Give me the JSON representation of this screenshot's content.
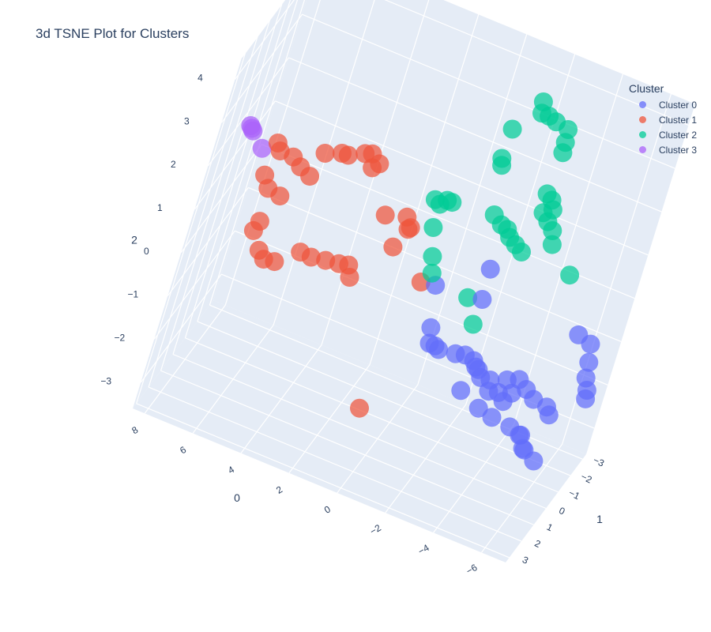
{
  "chart_data": {
    "type": "scatter",
    "title": "3d TSNE Plot for Clusters",
    "legend_title": "Cluster",
    "legend_placement": "top-right",
    "axes": {
      "x": {
        "title": "0",
        "ticks": [
          "8",
          "6",
          "4",
          "2",
          "0",
          "-2",
          "-4",
          "-6"
        ],
        "range": [
          -7,
          8.5
        ]
      },
      "y": {
        "title": "1",
        "ticks": [
          "-3",
          "-2",
          "-1",
          "0",
          "1",
          "2",
          "3"
        ],
        "range": [
          -3.3,
          3.3
        ]
      },
      "z": {
        "title": "2",
        "ticks": [
          "4",
          "3",
          "2",
          "1",
          "0",
          "-1",
          "-2",
          "-3"
        ],
        "range": [
          -3.6,
          4.5
        ]
      }
    },
    "grid": true,
    "series": [
      {
        "name": "Cluster 0",
        "color": "#636efa",
        "points": [
          [
            -1.2,
            -0.1,
            -1.3
          ],
          [
            -1.0,
            -0.2,
            -1.3
          ],
          [
            -1.9,
            0.0,
            -1.2
          ],
          [
            -2.3,
            0.1,
            -1.1
          ],
          [
            -2.8,
            0.0,
            -1.3
          ],
          [
            -3.5,
            0.1,
            -1.4
          ],
          [
            -3.6,
            0.2,
            -1.6
          ],
          [
            -4.1,
            0.0,
            -1.3
          ],
          [
            -4.6,
            0.2,
            -1.1
          ],
          [
            -4.5,
            0.3,
            -1.4
          ],
          [
            -2.7,
            0.2,
            -1.1
          ],
          [
            -3.0,
            0.3,
            -1.2
          ],
          [
            -3.2,
            0.4,
            -1.3
          ],
          [
            -4.0,
            0.3,
            -1.5
          ],
          [
            -4.3,
            0.4,
            -1.6
          ],
          [
            -5.0,
            0.3,
            -1.2
          ],
          [
            -5.4,
            0.4,
            -1.3
          ],
          [
            -6.0,
            0.5,
            -1.3
          ],
          [
            -6.2,
            0.6,
            -1.4
          ],
          [
            -2.7,
            0.7,
            -1.6
          ],
          [
            -3.5,
            0.5,
            -1.9
          ],
          [
            -4.2,
            0.9,
            -1.8
          ],
          [
            -5.0,
            1.0,
            -1.8
          ],
          [
            -5.5,
            1.2,
            -1.8
          ],
          [
            -5.8,
            1.3,
            -2.0
          ],
          [
            -5.6,
            1.4,
            -1.7
          ],
          [
            -6.0,
            1.8,
            -1.8
          ],
          [
            -6.5,
            1.9,
            -1.9
          ],
          [
            -5.9,
            -1.2,
            -0.3
          ],
          [
            -6.5,
            -1.0,
            -0.3
          ],
          [
            -6.7,
            -0.8,
            -0.6
          ],
          [
            -6.8,
            -0.7,
            -0.9
          ],
          [
            -7.0,
            -0.6,
            -1.1
          ],
          [
            -7.1,
            -0.4,
            -1.2
          ],
          [
            -0.3,
            -0.3,
            -0.1
          ],
          [
            -1.9,
            -1.2,
            0.3
          ],
          [
            -2.0,
            -1.0,
            -0.3
          ],
          [
            -0.8,
            0.4,
            -0.7
          ],
          [
            -1.0,
            0.7,
            -0.9
          ]
        ]
      },
      {
        "name": "Cluster 1",
        "color": "#ef553b",
        "points": [
          [
            7.0,
            0.2,
            1.7
          ],
          [
            6.8,
            0.3,
            1.6
          ],
          [
            6.3,
            0.1,
            1.5
          ],
          [
            5.9,
            0.2,
            1.4
          ],
          [
            5.5,
            0.0,
            1.2
          ],
          [
            7.2,
            -0.1,
            0.8
          ],
          [
            6.9,
            0.0,
            0.6
          ],
          [
            6.4,
            -0.1,
            0.5
          ],
          [
            6.8,
            0.1,
            -0.1
          ],
          [
            6.9,
            0.2,
            -0.3
          ],
          [
            6.5,
            0.1,
            -0.7
          ],
          [
            6.2,
            0.2,
            -0.8
          ],
          [
            5.8,
            0.1,
            -0.8
          ],
          [
            4.9,
            0.3,
            -0.3
          ],
          [
            4.5,
            0.1,
            -0.4
          ],
          [
            3.9,
            0.2,
            -0.3
          ],
          [
            3.4,
            0.1,
            -0.3
          ],
          [
            3.0,
            0.2,
            -0.2
          ],
          [
            2.8,
            0.3,
            -0.4
          ],
          [
            5.2,
            0.0,
            1.8
          ],
          [
            4.6,
            -0.1,
            1.9
          ],
          [
            4.3,
            0.1,
            2.0
          ],
          [
            3.8,
            -0.3,
            2.0
          ],
          [
            3.5,
            -0.2,
            2.1
          ],
          [
            3.1,
            -0.1,
            2.0
          ],
          [
            3.3,
            0.0,
            1.9
          ],
          [
            2.3,
            -0.1,
            1.0
          ],
          [
            1.5,
            -0.2,
            1.1
          ],
          [
            1.3,
            -0.1,
            0.9
          ],
          [
            1.2,
            0.0,
            1.0
          ],
          [
            1.6,
            0.1,
            0.5
          ],
          [
            0.3,
            -0.4,
            -0.2
          ],
          [
            0.7,
            1.2,
            -2.6
          ]
        ]
      },
      {
        "name": "Cluster 2",
        "color": "#00cc96",
        "points": [
          [
            -1.6,
            -2.5,
            3.6
          ],
          [
            -1.7,
            -2.4,
            3.4
          ],
          [
            -2.0,
            -2.4,
            3.4
          ],
          [
            -2.3,
            -2.5,
            3.3
          ],
          [
            -2.8,
            -2.6,
            3.2
          ],
          [
            -2.9,
            -2.4,
            3.0
          ],
          [
            -3.0,
            -2.1,
            2.9
          ],
          [
            -0.9,
            -2.0,
            3.0
          ],
          [
            -0.9,
            -1.8,
            2.4
          ],
          [
            -1.0,
            -1.7,
            2.3
          ],
          [
            -3.0,
            -1.7,
            2.1
          ],
          [
            -3.3,
            -1.5,
            2.1
          ],
          [
            -3.5,
            -1.3,
            2.0
          ],
          [
            -3.2,
            -1.2,
            1.9
          ],
          [
            -3.5,
            -1.1,
            1.8
          ],
          [
            -3.8,
            -1.0,
            1.7
          ],
          [
            -4.0,
            -0.8,
            1.5
          ],
          [
            -1.4,
            -1.3,
            1.4
          ],
          [
            -1.8,
            -1.2,
            1.3
          ],
          [
            -2.1,
            -1.1,
            1.3
          ],
          [
            -2.3,
            -1.0,
            1.2
          ],
          [
            -2.6,
            -1.0,
            1.1
          ],
          [
            -2.9,
            -1.0,
            1.0
          ],
          [
            -5.1,
            -0.4,
            1.2
          ],
          [
            0.9,
            -1.1,
            1.3
          ],
          [
            0.7,
            -1.2,
            1.2
          ],
          [
            0.5,
            -1.3,
            1.3
          ],
          [
            0.3,
            -1.3,
            1.3
          ],
          [
            0.6,
            -0.9,
            0.8
          ],
          [
            0.3,
            -0.9,
            0.2
          ],
          [
            0.1,
            -0.8,
            -0.1
          ],
          [
            -1.5,
            -0.8,
            -0.3
          ],
          [
            -2.0,
            -0.8,
            -0.8
          ]
        ]
      },
      {
        "name": "Cluster 3",
        "color": "#ab63fa",
        "points": [
          [
            8.1,
            0.6,
            2.0
          ],
          [
            8.0,
            0.7,
            2.0
          ],
          [
            7.9,
            0.8,
            2.0
          ],
          [
            7.5,
            0.3,
            1.5
          ]
        ]
      }
    ]
  }
}
